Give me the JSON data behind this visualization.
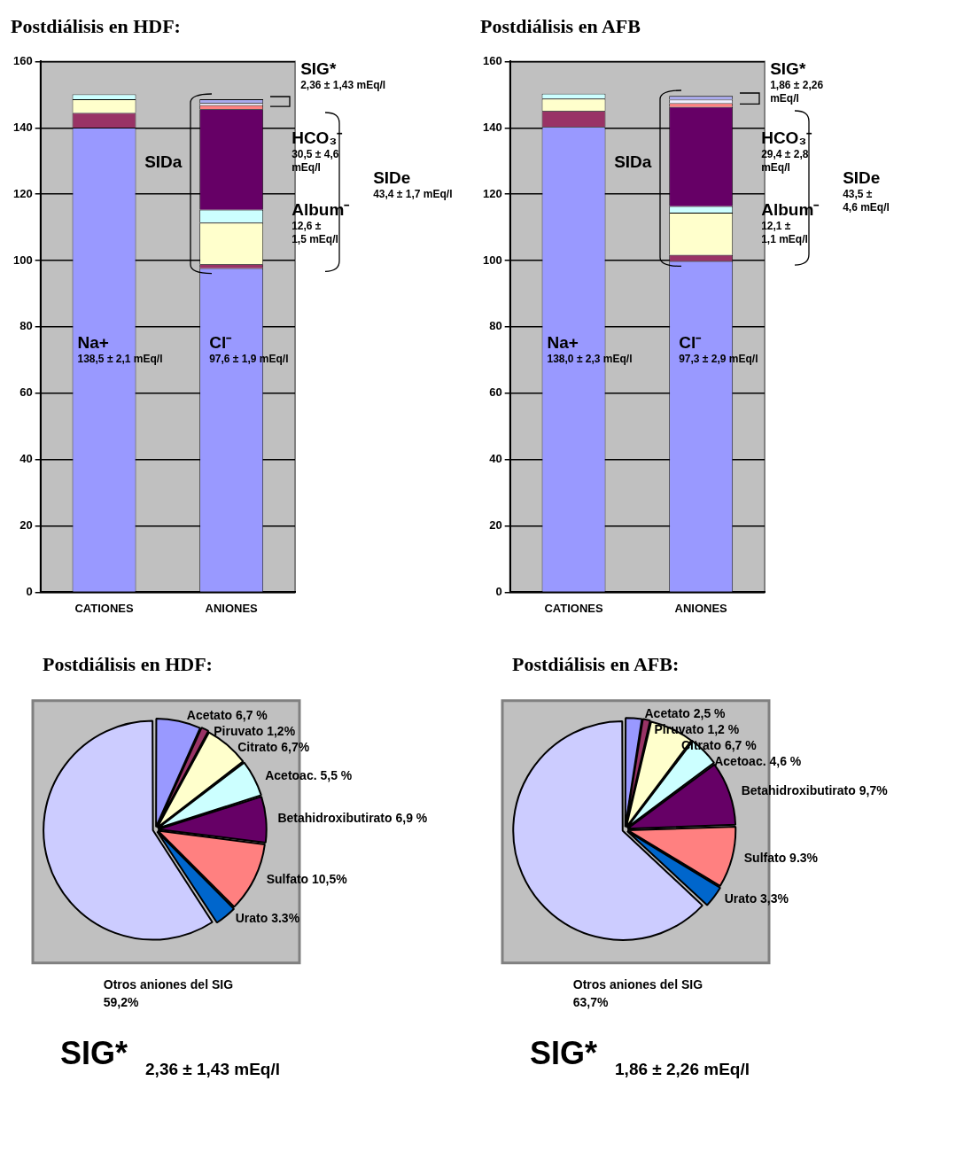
{
  "chart_data": [
    {
      "type": "bar",
      "title": "Postdiálisis en HDF:",
      "categories": [
        "CATIONES",
        "ANIONES"
      ],
      "stacked": true,
      "ylim": [
        0,
        160
      ],
      "yticks": [
        0,
        20,
        40,
        60,
        80,
        100,
        120,
        140,
        160
      ],
      "grid": "y",
      "series": [
        {
          "color": "#9999ff",
          "values": [
            140,
            97.7
          ]
        },
        {
          "color": "#993366",
          "values": [
            4.5,
            1.2
          ]
        },
        {
          "color": "#ffffcc",
          "values": [
            4.1,
            12.5
          ]
        },
        {
          "color": "#ccffff",
          "values": [
            1.5,
            3.9
          ]
        },
        {
          "color": "#660066",
          "values": [
            null,
            30.3
          ]
        },
        {
          "color": "#ff8080",
          "values": [
            null,
            1.2
          ]
        },
        {
          "color": "#eeeeff",
          "values": [
            null,
            0.7
          ]
        },
        {
          "color": "#aaaaee",
          "values": [
            null,
            1.1
          ]
        }
      ],
      "annotations": [
        "Na+\n138,5 ± 2,1 mEq/l",
        "Cl⁻\n97,6 ± 1,9 mEq/l",
        "SIDa",
        "HCO₃⁻\n30,5 ± 4,6\nmEq/l",
        "Album⁻\n12,6 ±\n1,5 mEq/l",
        "SIDe\n43,4 ± 1,7 mEq/l",
        "SIG*\n2,36 ± 1,43 mEq/l"
      ]
    },
    {
      "type": "bar",
      "title": "Postdiálisis en AFB",
      "categories": [
        "CATIONES",
        "ANIONES"
      ],
      "stacked": true,
      "ylim": [
        0,
        160
      ],
      "yticks": [
        0,
        20,
        40,
        60,
        80,
        100,
        120,
        140,
        160
      ],
      "grid": "y",
      "series": [
        {
          "color": "#9999ff",
          "values": [
            140.3,
            99.8
          ]
        },
        {
          "color": "#993366",
          "values": [
            4.8,
            1.9
          ]
        },
        {
          "color": "#ffffcc",
          "values": [
            3.7,
            12.7
          ]
        },
        {
          "color": "#ccffff",
          "values": [
            1.5,
            2.0
          ]
        },
        {
          "color": "#660066",
          "values": [
            null,
            29.9
          ]
        },
        {
          "color": "#ff8080",
          "values": [
            null,
            1.1
          ]
        },
        {
          "color": "#eeeeff",
          "values": [
            null,
            1.1
          ]
        },
        {
          "color": "#aaaaee",
          "values": [
            null,
            1.1
          ]
        }
      ],
      "annotations": [
        "Na+\n138,0 ± 2,3 mEq/l",
        "Cl⁻\n97,3 ± 2,9 mEq/l",
        "SIDa",
        "HCO₃⁻\n29,4 ± 2,8\nmEq/l",
        "Album⁻\n12,1 ±\n1,1 mEq/l",
        "SIDe\n43,5 ±\n4,6 mEq/l",
        "SIG*\n1,86 ± 2,26\nmEq/l"
      ]
    },
    {
      "type": "pie",
      "title": "Postdiálisis en HDF:",
      "categories": [
        "Acetato",
        "Piruvato",
        "Citrato",
        "Acetoac.",
        "Betahidroxibutirato",
        "Sulfato",
        "Urato",
        "Otros aniones del SIG"
      ],
      "values": [
        6.7,
        1.2,
        6.7,
        5.5,
        6.9,
        10.5,
        3.3,
        59.2
      ],
      "value_labels": [
        "6,7 %",
        "1,2%",
        "6,7%",
        "5,5 %",
        "6,9 %",
        "10,5%",
        "3.3%",
        "59,2%"
      ],
      "colors": [
        "#9999ff",
        "#993366",
        "#ffffcc",
        "#ccffff",
        "#660066",
        "#ff8080",
        "#0066cc",
        "#ccccff"
      ],
      "annotations": [
        "SIG*$_{2,36 ± 1,43 mEq/l}$"
      ]
    },
    {
      "type": "pie",
      "title": "Postdiálisis en AFB:",
      "categories": [
        "Acetato",
        "Piruvato",
        "Citrato",
        "Acetoac.",
        "Betahidroxibutirato",
        "Sulfato",
        "Urato",
        "Otros aniones del SIG"
      ],
      "values": [
        2.5,
        1.2,
        6.7,
        4.6,
        9.7,
        9.3,
        3.3,
        63.7
      ],
      "value_labels": [
        "2,5 %",
        "1,2 %",
        "6,7 %",
        "4,6 %",
        "9,7%",
        "9.3%",
        "3,3%",
        "63,7%"
      ],
      "colors": [
        "#9999ff",
        "#993366",
        "#ffffcc",
        "#ccffff",
        "#660066",
        "#ff8080",
        "#0066cc",
        "#ccccff"
      ],
      "annotations": [
        "SIG*$_{1,86 ± 2,26 mEq/l}$"
      ]
    }
  ]
}
